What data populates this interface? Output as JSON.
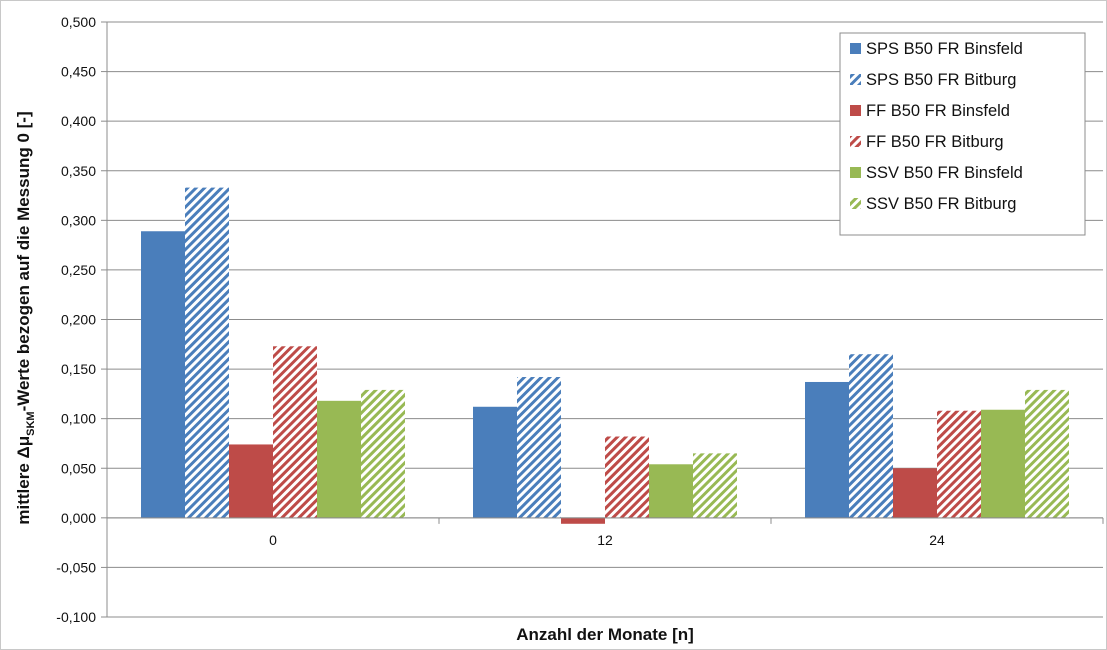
{
  "chart_data": {
    "type": "bar",
    "categories": [
      "0",
      "12",
      "24"
    ],
    "series": [
      {
        "name": "SPS B50 FR Binsfeld",
        "values": [
          0.289,
          0.112,
          0.137
        ],
        "color": "#4a7ebb",
        "pattern": "solid"
      },
      {
        "name": "SPS B50 FR Bitburg",
        "values": [
          0.333,
          0.142,
          0.165
        ],
        "color": "#4a7ebb",
        "pattern": "hatch"
      },
      {
        "name": "FF B50 FR Binsfeld",
        "values": [
          0.074,
          -0.006,
          0.05
        ],
        "color": "#be4b48",
        "pattern": "solid"
      },
      {
        "name": "FF B50 FR Bitburg",
        "values": [
          0.173,
          0.082,
          0.108
        ],
        "color": "#be4b48",
        "pattern": "hatch"
      },
      {
        "name": "SSV B50 FR Binsfeld",
        "values": [
          0.118,
          0.054,
          0.109
        ],
        "color": "#98b954",
        "pattern": "solid"
      },
      {
        "name": "SSV B50 FR Bitburg",
        "values": [
          0.129,
          0.065,
          0.129
        ],
        "color": "#98b954",
        "pattern": "hatch"
      }
    ],
    "xlabel": "Anzahl der Monate [n]",
    "ylabel_parts": [
      "mittlere Δμ",
      "SKM",
      "-Werte bezogen auf die Messung 0 [-]"
    ],
    "ylim": [
      -0.1,
      0.5
    ],
    "yticks": [
      "-0,100",
      "-0,050",
      "0,000",
      "0,050",
      "0,100",
      "0,150",
      "0,200",
      "0,250",
      "0,300",
      "0,350",
      "0,400",
      "0,450",
      "0,500"
    ],
    "ytick_values": [
      -0.1,
      -0.05,
      0,
      0.05,
      0.1,
      0.15,
      0.2,
      0.25,
      0.3,
      0.35,
      0.4,
      0.45,
      0.5
    ],
    "grid": true,
    "legend_position": "top-right"
  }
}
